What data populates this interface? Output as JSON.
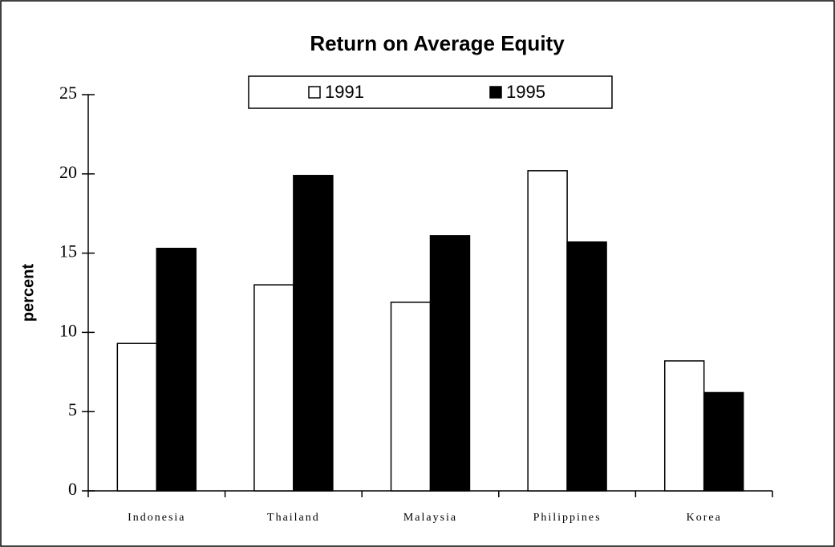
{
  "chart_data": {
    "type": "bar",
    "title": "Return on Average Equity",
    "y_label": "percent",
    "categories": [
      "Indonesia",
      "Thailand",
      "Malaysia",
      "Philippines",
      "Korea"
    ],
    "series": [
      {
        "name": "1991",
        "color": "#ffffff",
        "values": [
          9.3,
          13.0,
          11.9,
          20.2,
          8.2
        ]
      },
      {
        "name": "1995",
        "color": "#000000",
        "values": [
          15.3,
          19.9,
          16.1,
          15.7,
          6.2
        ]
      }
    ],
    "ylim": [
      0,
      25
    ],
    "yticks": [
      0,
      5,
      10,
      15,
      20,
      25
    ],
    "grid": false,
    "legend": "top"
  }
}
